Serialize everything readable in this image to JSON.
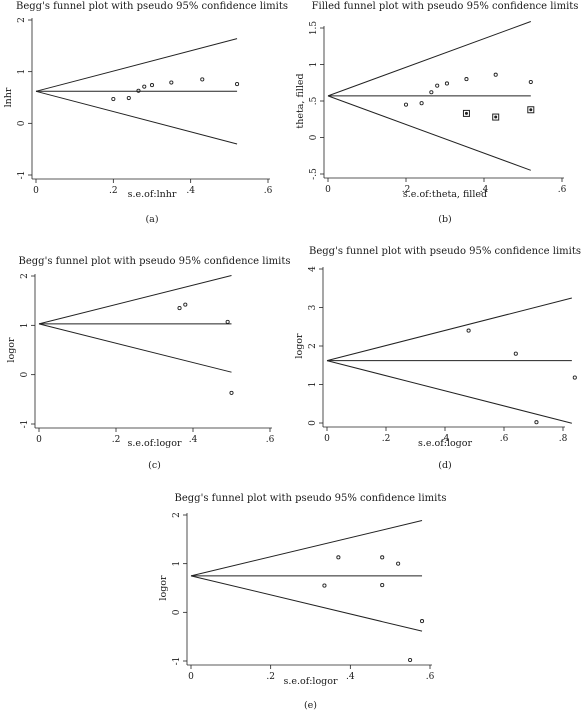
{
  "chart_data": [
    {
      "id": "a",
      "type": "scatter",
      "panel_label": "(a)",
      "title": "Begg's funnel plot with pseudo 95% confidence limits",
      "xlabel": "s.e.of:lnhr",
      "ylabel": "lnhr",
      "xlim": [
        0,
        0.6
      ],
      "ylim": [
        -1,
        2
      ],
      "xticks": [
        0,
        0.2,
        0.4,
        0.6
      ],
      "xtick_labels": [
        "0",
        ".2",
        ".4",
        ".6"
      ],
      "yticks": [
        -1,
        0,
        1,
        2
      ],
      "ytick_labels": [
        "-1",
        "0",
        "1",
        "2"
      ],
      "pooled": 0.62,
      "limit_se_max": 0.52,
      "points": [
        {
          "x": 0.2,
          "y": 0.47
        },
        {
          "x": 0.24,
          "y": 0.49
        },
        {
          "x": 0.265,
          "y": 0.63
        },
        {
          "x": 0.28,
          "y": 0.71
        },
        {
          "x": 0.3,
          "y": 0.74
        },
        {
          "x": 0.35,
          "y": 0.79
        },
        {
          "x": 0.43,
          "y": 0.85
        },
        {
          "x": 0.52,
          "y": 0.76
        }
      ],
      "filled_points": []
    },
    {
      "id": "b",
      "type": "scatter",
      "panel_label": "(b)",
      "title": "Filled funnel plot with pseudo 95% confidence limits",
      "xlabel": "s.e.of:theta, filled",
      "ylabel": "theta, filled",
      "xlim": [
        0,
        0.6
      ],
      "ylim": [
        -0.5,
        1.5
      ],
      "xticks": [
        0,
        0.2,
        0.4,
        0.6
      ],
      "xtick_labels": [
        "0",
        ".2",
        ".4",
        ".6"
      ],
      "yticks": [
        -0.5,
        0,
        0.5,
        1,
        1.5
      ],
      "ytick_labels": [
        "-.5",
        "0",
        ".5",
        "1",
        "1.5"
      ],
      "pooled": 0.57,
      "limit_se_max": 0.52,
      "points": [
        {
          "x": 0.2,
          "y": 0.45
        },
        {
          "x": 0.24,
          "y": 0.47
        },
        {
          "x": 0.265,
          "y": 0.62
        },
        {
          "x": 0.28,
          "y": 0.71
        },
        {
          "x": 0.305,
          "y": 0.74
        },
        {
          "x": 0.355,
          "y": 0.8
        },
        {
          "x": 0.43,
          "y": 0.86
        },
        {
          "x": 0.52,
          "y": 0.76
        }
      ],
      "filled_points": [
        {
          "x": 0.355,
          "y": 0.33
        },
        {
          "x": 0.43,
          "y": 0.28
        },
        {
          "x": 0.52,
          "y": 0.38
        }
      ]
    },
    {
      "id": "c",
      "type": "scatter",
      "panel_label": "(c)",
      "title": "Begg's funnel plot with pseudo 95% confidence limits",
      "xlabel": "s.e.of:logor",
      "ylabel": "logor",
      "xlim": [
        0,
        0.6
      ],
      "ylim": [
        -1,
        2
      ],
      "xticks": [
        0,
        0.2,
        0.4,
        0.6
      ],
      "xtick_labels": [
        "0",
        ".2",
        ".4",
        ".6"
      ],
      "yticks": [
        -1,
        0,
        1,
        2
      ],
      "ytick_labels": [
        "-1",
        "0",
        "1",
        "2"
      ],
      "pooled": 1.03,
      "limit_se_max": 0.5,
      "points": [
        {
          "x": 0.365,
          "y": 1.35
        },
        {
          "x": 0.38,
          "y": 1.42
        },
        {
          "x": 0.49,
          "y": 1.07
        },
        {
          "x": 0.5,
          "y": -0.37
        }
      ],
      "filled_points": []
    },
    {
      "id": "d",
      "type": "scatter",
      "panel_label": "(d)",
      "title": "Begg's funnel plot with pseudo 95% confidence limits",
      "xlabel": "s.e.of:logor",
      "ylabel": "logor",
      "xlim": [
        0,
        0.8
      ],
      "ylim": [
        0,
        4
      ],
      "xticks": [
        0,
        0.2,
        0.4,
        0.6,
        0.8
      ],
      "xtick_labels": [
        "0",
        ".2",
        ".4",
        ".6",
        ".8"
      ],
      "yticks": [
        0,
        1,
        2,
        3,
        4
      ],
      "ytick_labels": [
        "0",
        "1",
        "2",
        "3",
        "4"
      ],
      "pooled": 1.62,
      "limit_se_max": 0.83,
      "points": [
        {
          "x": 0.48,
          "y": 2.4
        },
        {
          "x": 0.64,
          "y": 1.8
        },
        {
          "x": 0.71,
          "y": 0.02
        },
        {
          "x": 0.84,
          "y": 1.18
        }
      ],
      "filled_points": []
    },
    {
      "id": "e",
      "type": "scatter",
      "panel_label": "(e)",
      "title": "Begg's funnel plot with pseudo 95% confidence limits",
      "xlabel": "s.e.of:logor",
      "ylabel": "logor",
      "xlim": [
        0,
        0.6
      ],
      "ylim": [
        -1,
        2
      ],
      "xticks": [
        0,
        0.2,
        0.4,
        0.6
      ],
      "xtick_labels": [
        "0",
        ".2",
        ".4",
        ".6"
      ],
      "yticks": [
        -1,
        0,
        1,
        2
      ],
      "ytick_labels": [
        "-1",
        "0",
        "1",
        "2"
      ],
      "pooled": 0.75,
      "limit_se_max": 0.58,
      "points": [
        {
          "x": 0.335,
          "y": 0.55
        },
        {
          "x": 0.37,
          "y": 1.13
        },
        {
          "x": 0.48,
          "y": 1.13
        },
        {
          "x": 0.48,
          "y": 0.56
        },
        {
          "x": 0.52,
          "y": 1.0
        },
        {
          "x": 0.55,
          "y": -0.98
        },
        {
          "x": 0.58,
          "y": -0.18
        }
      ],
      "filled_points": []
    }
  ]
}
